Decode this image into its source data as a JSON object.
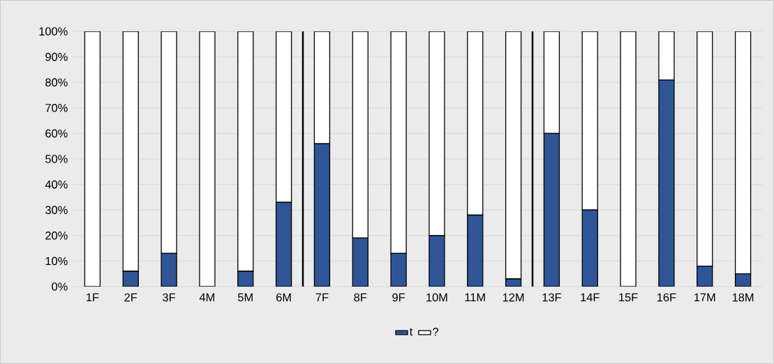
{
  "chart_data": {
    "type": "bar",
    "stacked": true,
    "categories": [
      "1F",
      "2F",
      "3F",
      "4M",
      "5M",
      "6M",
      "7F",
      "8F",
      "9F",
      "10M",
      "11M",
      "12M",
      "13F",
      "14F",
      "15F",
      "16F",
      "17M",
      "18M"
    ],
    "series": [
      {
        "name": "t",
        "color": "#2f5597",
        "values": [
          0,
          6,
          13,
          0,
          6,
          33,
          56,
          19,
          13,
          20,
          28,
          3,
          60,
          30,
          0,
          81,
          8,
          5
        ]
      },
      {
        "name": "?",
        "color": "#ffffff",
        "values": [
          100,
          94,
          87,
          100,
          94,
          67,
          44,
          81,
          87,
          80,
          72,
          97,
          40,
          70,
          100,
          19,
          92,
          95
        ]
      }
    ],
    "ylim": [
      0,
      100
    ],
    "yticks": [
      {
        "value": 0,
        "label": "0%"
      },
      {
        "value": 10,
        "label": "10%"
      },
      {
        "value": 20,
        "label": "20%"
      },
      {
        "value": 30,
        "label": "30%"
      },
      {
        "value": 40,
        "label": "40%"
      },
      {
        "value": 50,
        "label": "50%"
      },
      {
        "value": 60,
        "label": "60%"
      },
      {
        "value": 70,
        "label": "70%"
      },
      {
        "value": 80,
        "label": "80%"
      },
      {
        "value": 90,
        "label": "90%"
      },
      {
        "value": 100,
        "label": "100%"
      }
    ],
    "grid": "y",
    "legend": "bottom"
  }
}
